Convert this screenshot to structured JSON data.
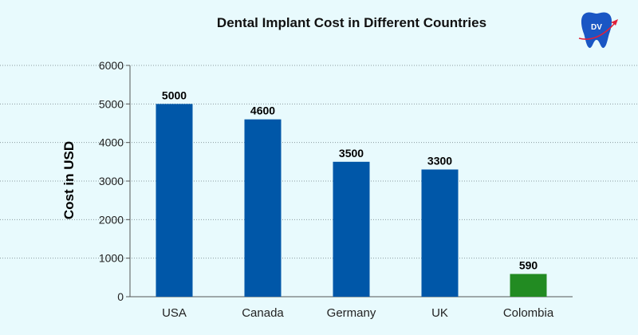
{
  "chart_data": {
    "type": "bar",
    "title": "Dental Implant Cost in Different Countries",
    "ylabel": "Cost in USD",
    "xlabel": "",
    "categories": [
      "USA",
      "Canada",
      "Germany",
      "UK",
      "Colombia"
    ],
    "values": [
      5000,
      4600,
      3500,
      3300,
      590
    ],
    "bar_colors": [
      "#0057a8",
      "#0057a8",
      "#0057a8",
      "#0057a8",
      "#228b22"
    ],
    "ylim": [
      0,
      6000
    ],
    "yticks": [
      0,
      1000,
      2000,
      3000,
      4000,
      5000,
      6000
    ],
    "grid": "horizontal dashed",
    "legend": "none"
  },
  "logo": {
    "text": "DV",
    "icon": "tooth-plane-icon",
    "color": "#1a56c4",
    "accent": "#e0203a"
  }
}
